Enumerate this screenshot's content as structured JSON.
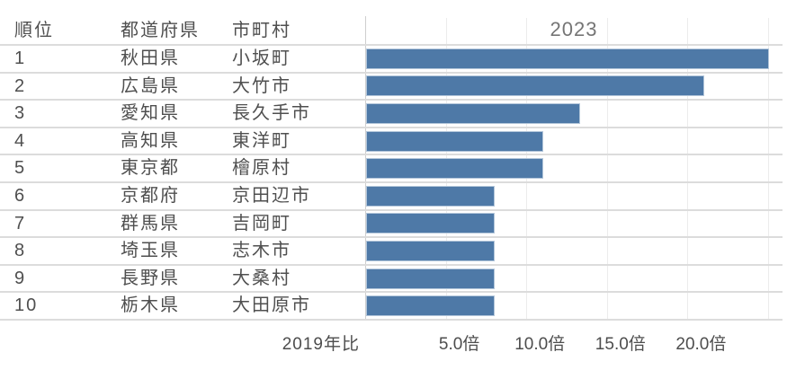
{
  "chart_data": {
    "type": "bar",
    "orientation": "horizontal",
    "title": "2023",
    "xlabel": "2019年比",
    "value_suffix": "倍",
    "grid": true,
    "legend": false,
    "xlim": [
      0,
      26
    ],
    "gridline_values": [
      5,
      10,
      15,
      20,
      25
    ],
    "x_ticks": [
      {
        "value": 5,
        "label": "5.0倍"
      },
      {
        "value": 10,
        "label": "10.0倍"
      },
      {
        "value": 15,
        "label": "15.0倍"
      },
      {
        "value": 20,
        "label": "20.0倍"
      }
    ],
    "columns": {
      "rank": "順位",
      "prefecture": "都道府県",
      "municipality": "市町村"
    },
    "categories": [
      "小坂町",
      "大竹市",
      "長久手市",
      "東洋町",
      "檜原村",
      "京田辺市",
      "吉岡町",
      "志木市",
      "大桑村",
      "大田原市"
    ],
    "values": [
      25.0,
      21.0,
      13.3,
      11.0,
      11.0,
      8.0,
      8.0,
      8.0,
      8.0,
      8.0
    ],
    "rows": [
      {
        "rank": "1",
        "prefecture": "秋田県",
        "municipality": "小坂町",
        "value": 25.0
      },
      {
        "rank": "2",
        "prefecture": "広島県",
        "municipality": "大竹市",
        "value": 21.0
      },
      {
        "rank": "3",
        "prefecture": "愛知県",
        "municipality": "長久手市",
        "value": 13.3
      },
      {
        "rank": "4",
        "prefecture": "高知県",
        "municipality": "東洋町",
        "value": 11.0
      },
      {
        "rank": "5",
        "prefecture": "東京都",
        "municipality": "檜原村",
        "value": 11.0
      },
      {
        "rank": "6",
        "prefecture": "京都府",
        "municipality": "京田辺市",
        "value": 8.0
      },
      {
        "rank": "7",
        "prefecture": "群馬県",
        "municipality": "吉岡町",
        "value": 8.0
      },
      {
        "rank": "8",
        "prefecture": "埼玉県",
        "municipality": "志木市",
        "value": 8.0
      },
      {
        "rank": "9",
        "prefecture": "長野県",
        "municipality": "大桑村",
        "value": 8.0
      },
      {
        "rank": "10",
        "prefecture": "栃木県",
        "municipality": "大田原市",
        "value": 8.0
      }
    ],
    "colors": {
      "bar": "#4e79a7",
      "bar_border": "#b3c6da",
      "text": "#4f4f4f",
      "title": "#757575",
      "axis_text": "#4d4d4d",
      "separator": "#dcdcdc",
      "gridline": "#ececec",
      "axis_line": "#cfcfcf"
    }
  }
}
